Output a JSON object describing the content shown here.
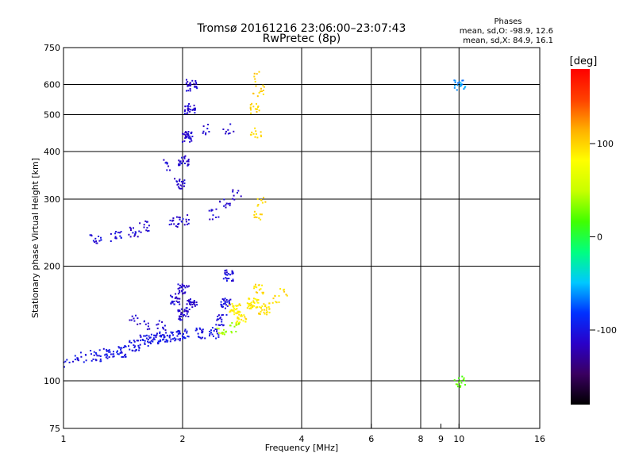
{
  "chart_data": {
    "type": "scatter",
    "title": "Tromsø 20161216 23:06:00–23:07:43",
    "subtitle": "RwPretec (8p)",
    "xlabel": "Frequency [MHz]",
    "ylabel": "Stationary phase Virtual Height [km]",
    "x_scale": "log",
    "y_scale": "log",
    "xlim": [
      1,
      16
    ],
    "ylim": [
      75,
      750
    ],
    "x_ticks": [
      1,
      2,
      4,
      6,
      8,
      10,
      16
    ],
    "x_minor_ticks": [
      9
    ],
    "y_ticks": [
      75,
      100,
      200,
      300,
      400,
      500,
      600,
      750
    ],
    "grid": true,
    "stats_box": {
      "title": "Phases",
      "line_o": "mean, sd,O: -98.9, 12.6",
      "line_x": "mean, sd,X:  84.9, 16.1"
    },
    "colorbar": {
      "label": "[deg]",
      "range": [
        -180,
        180
      ],
      "ticks": [
        100,
        0,
        -100
      ],
      "colors": [
        "#000000",
        "#3a0060",
        "#2a00c8",
        "#0030ff",
        "#00c8ff",
        "#00ff80",
        "#40ff00",
        "#c8ff00",
        "#ffff00",
        "#ffb000",
        "#ff4000",
        "#ff0000"
      ]
    },
    "series": [
      {
        "values": [
          {
            "x": 1.03,
            "y": 112,
            "phase": -100,
            "count": 6
          },
          {
            "x": 1.1,
            "y": 116,
            "phase": -100,
            "count": 12
          },
          {
            "x": 1.2,
            "y": 117,
            "phase": -100,
            "count": 18
          },
          {
            "x": 1.3,
            "y": 118,
            "phase": -100,
            "count": 20
          },
          {
            "x": 1.4,
            "y": 120,
            "phase": -100,
            "count": 22
          },
          {
            "x": 1.5,
            "y": 124,
            "phase": -100,
            "count": 22
          },
          {
            "x": 1.6,
            "y": 128,
            "phase": -100,
            "count": 22
          },
          {
            "x": 1.7,
            "y": 130,
            "phase": -100,
            "count": 22
          },
          {
            "x": 1.8,
            "y": 131,
            "phase": -100,
            "count": 22
          },
          {
            "x": 1.9,
            "y": 132,
            "phase": -100,
            "count": 20
          },
          {
            "x": 2.0,
            "y": 133,
            "phase": -100,
            "count": 20
          },
          {
            "x": 2.2,
            "y": 134,
            "phase": -100,
            "count": 18
          },
          {
            "x": 2.4,
            "y": 134,
            "phase": -100,
            "count": 16
          },
          {
            "x": 1.5,
            "y": 145,
            "phase": -110,
            "count": 8
          },
          {
            "x": 1.6,
            "y": 140,
            "phase": -110,
            "count": 8
          },
          {
            "x": 1.75,
            "y": 140,
            "phase": -110,
            "count": 10
          },
          {
            "x": 1.9,
            "y": 165,
            "phase": -110,
            "count": 22
          },
          {
            "x": 2.0,
            "y": 150,
            "phase": -110,
            "count": 30
          },
          {
            "x": 2.0,
            "y": 175,
            "phase": -110,
            "count": 25
          },
          {
            "x": 2.1,
            "y": 160,
            "phase": -110,
            "count": 25
          },
          {
            "x": 2.6,
            "y": 190,
            "phase": -105,
            "count": 25
          },
          {
            "x": 2.55,
            "y": 160,
            "phase": -105,
            "count": 25
          },
          {
            "x": 2.5,
            "y": 145,
            "phase": -105,
            "count": 18
          },
          {
            "x": 2.7,
            "y": 155,
            "phase": 90,
            "count": 30
          },
          {
            "x": 2.8,
            "y": 145,
            "phase": 90,
            "count": 25
          },
          {
            "x": 3.0,
            "y": 160,
            "phase": 90,
            "count": 35
          },
          {
            "x": 3.2,
            "y": 155,
            "phase": 95,
            "count": 25
          },
          {
            "x": 3.1,
            "y": 175,
            "phase": 95,
            "count": 15
          },
          {
            "x": 3.4,
            "y": 165,
            "phase": 95,
            "count": 10
          },
          {
            "x": 3.6,
            "y": 172,
            "phase": 95,
            "count": 6
          },
          {
            "x": 2.5,
            "y": 135,
            "phase": 40,
            "count": 12
          },
          {
            "x": 2.7,
            "y": 138,
            "phase": 40,
            "count": 10
          },
          {
            "x": 1.2,
            "y": 237,
            "phase": -105,
            "count": 14
          },
          {
            "x": 1.35,
            "y": 240,
            "phase": -105,
            "count": 14
          },
          {
            "x": 1.5,
            "y": 248,
            "phase": -110,
            "count": 14
          },
          {
            "x": 1.6,
            "y": 255,
            "phase": -110,
            "count": 12
          },
          {
            "x": 1.9,
            "y": 262,
            "phase": -110,
            "count": 15
          },
          {
            "x": 2.0,
            "y": 265,
            "phase": -110,
            "count": 12
          },
          {
            "x": 2.4,
            "y": 275,
            "phase": -110,
            "count": 10
          },
          {
            "x": 2.55,
            "y": 295,
            "phase": -110,
            "count": 10
          },
          {
            "x": 2.75,
            "y": 310,
            "phase": -110,
            "count": 8
          },
          {
            "x": 3.1,
            "y": 275,
            "phase": 100,
            "count": 10
          },
          {
            "x": 3.15,
            "y": 295,
            "phase": 100,
            "count": 8
          },
          {
            "x": 1.95,
            "y": 330,
            "phase": -110,
            "count": 20
          },
          {
            "x": 2.0,
            "y": 380,
            "phase": -110,
            "count": 30
          },
          {
            "x": 2.05,
            "y": 440,
            "phase": -110,
            "count": 30
          },
          {
            "x": 2.08,
            "y": 520,
            "phase": -110,
            "count": 30
          },
          {
            "x": 2.1,
            "y": 600,
            "phase": -110,
            "count": 25
          },
          {
            "x": 1.8,
            "y": 370,
            "phase": -110,
            "count": 8
          },
          {
            "x": 2.3,
            "y": 460,
            "phase": -110,
            "count": 8
          },
          {
            "x": 2.6,
            "y": 460,
            "phase": -110,
            "count": 8
          },
          {
            "x": 3.05,
            "y": 450,
            "phase": 100,
            "count": 12
          },
          {
            "x": 3.05,
            "y": 520,
            "phase": 100,
            "count": 15
          },
          {
            "x": 3.1,
            "y": 580,
            "phase": 100,
            "count": 12
          },
          {
            "x": 3.1,
            "y": 630,
            "phase": 100,
            "count": 6
          },
          {
            "x": 10.0,
            "y": 100,
            "phase": 20,
            "count": 15
          },
          {
            "x": 10.0,
            "y": 600,
            "phase": -60,
            "count": 20
          }
        ]
      }
    ]
  }
}
